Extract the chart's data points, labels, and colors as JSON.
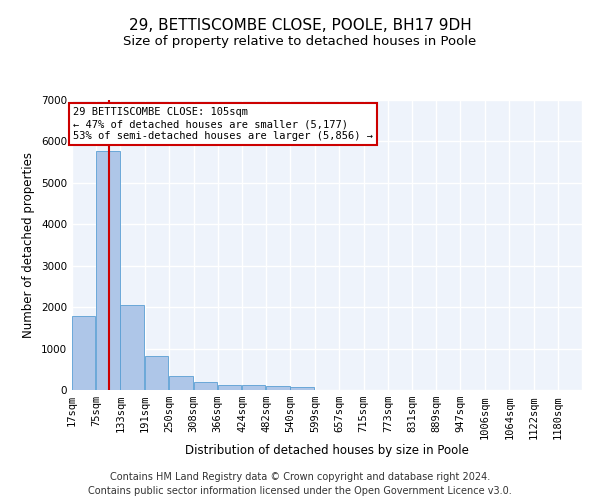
{
  "title_line1": "29, BETTISCOMBE CLOSE, POOLE, BH17 9DH",
  "title_line2": "Size of property relative to detached houses in Poole",
  "xlabel": "Distribution of detached houses by size in Poole",
  "ylabel": "Number of detached properties",
  "bar_color": "#aec6e8",
  "bar_edge_color": "#5a9fd4",
  "annotation_line1": "29 BETTISCOMBE CLOSE: 105sqm",
  "annotation_line2": "← 47% of detached houses are smaller (5,177)",
  "annotation_line3": "53% of semi-detached houses are larger (5,856) →",
  "annotation_box_color": "#ffffff",
  "annotation_box_edge_color": "#cc0000",
  "vline_color": "#cc0000",
  "vline_x": 105,
  "categories": [
    "17sqm",
    "75sqm",
    "133sqm",
    "191sqm",
    "250sqm",
    "308sqm",
    "366sqm",
    "424sqm",
    "482sqm",
    "540sqm",
    "599sqm",
    "657sqm",
    "715sqm",
    "773sqm",
    "831sqm",
    "889sqm",
    "947sqm",
    "1006sqm",
    "1064sqm",
    "1122sqm",
    "1180sqm"
  ],
  "bin_edges": [
    17,
    75,
    133,
    191,
    250,
    308,
    366,
    424,
    482,
    540,
    599,
    657,
    715,
    773,
    831,
    889,
    947,
    1006,
    1064,
    1122,
    1180
  ],
  "bin_width": 58,
  "values": [
    1780,
    5780,
    2060,
    820,
    340,
    190,
    130,
    110,
    90,
    65,
    0,
    0,
    0,
    0,
    0,
    0,
    0,
    0,
    0,
    0,
    0
  ],
  "ylim": [
    0,
    7000
  ],
  "yticks": [
    0,
    1000,
    2000,
    3000,
    4000,
    5000,
    6000,
    7000
  ],
  "footnote_line1": "Contains HM Land Registry data © Crown copyright and database right 2024.",
  "footnote_line2": "Contains public sector information licensed under the Open Government Licence v3.0.",
  "bg_color": "#eef3fb",
  "grid_color": "#ffffff",
  "title1_fontsize": 11,
  "title2_fontsize": 9.5,
  "axis_label_fontsize": 8.5,
  "tick_fontsize": 7.5,
  "annotation_fontsize": 7.5,
  "footnote_fontsize": 7
}
